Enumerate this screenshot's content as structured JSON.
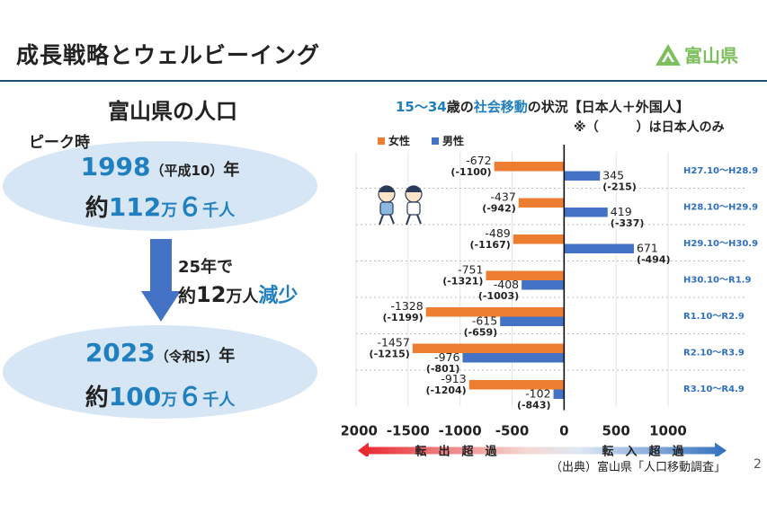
{
  "header": {
    "title": "成長戦略とウェルビーイング",
    "logo_text": "富山県"
  },
  "population": {
    "heading": "富山県の人口",
    "peak_label": "ピーク時",
    "peak_year": "1998",
    "peak_era": "（平成10）",
    "year_suffix": "年",
    "peak_yaku": "約",
    "peak_value": "112",
    "peak_man": "万",
    "peak_six": "６",
    "peak_sennin": "千人",
    "decline_years": "25年で",
    "decline_yaku": "約",
    "decline_value": "12",
    "decline_man": "万人",
    "decline_word": "減少",
    "now_year": "2023",
    "now_era": "（令和5）",
    "now_yaku": "約",
    "now_value": "100",
    "now_man": "万",
    "now_six": "６",
    "now_sennin": "千人"
  },
  "chart_data": {
    "type": "bar",
    "orientation": "horizontal",
    "title_parts": [
      {
        "text": "15～34",
        "color": "#1f7fbf"
      },
      {
        "text": "歳の",
        "color": "#222222"
      },
      {
        "text": "社会移動",
        "color": "#1f7fbf"
      },
      {
        "text": "の状況【日本人＋外国人】",
        "color": "#222222"
      }
    ],
    "note": "※（　　　）は日本人のみ",
    "categories": [
      "H27.10～H28.9",
      "H28.10～H29.9",
      "H29.10～H30.9",
      "H30.10～R1.9",
      "R1.10～R2.9",
      "R2.10～R3.9",
      "R3.10～R4.9"
    ],
    "series": [
      {
        "name": "女性",
        "color": "#ed7d31",
        "values": [
          -672,
          -437,
          -489,
          -751,
          -1328,
          -1457,
          -913
        ],
        "japanese_only": [
          -1100,
          -942,
          -1167,
          -1321,
          -1199,
          -1215,
          -1204
        ],
        "labels": [
          "-672",
          "-437",
          "-489",
          "-751",
          "-1328",
          "-1457",
          "-913"
        ],
        "sub_labels": [
          "(-1100)",
          "(-942)",
          "(-1167)",
          "(-1321)",
          "(-1199)",
          "(-1215)",
          "(-1204)"
        ]
      },
      {
        "name": "男性",
        "color": "#4472c4",
        "values": [
          345,
          419,
          671,
          -408,
          -615,
          -976,
          -102
        ],
        "japanese_only": [
          -215,
          -337,
          -494,
          -1003,
          -659,
          -801,
          -843
        ],
        "labels": [
          "345",
          "419",
          "671",
          "-408",
          "-615",
          "-976",
          "-102"
        ],
        "sub_labels": [
          "(-215)",
          "(-337)",
          "(-494)",
          "(-1003)",
          "(-659)",
          "(-801)",
          "(-843)"
        ]
      }
    ],
    "xlim": [
      -2000,
      1000
    ],
    "ticks": [
      -2000,
      -1500,
      -1000,
      -500,
      0,
      500,
      1000
    ],
    "tick_labels": [
      "-2000",
      "-1500",
      "-1000",
      "-500",
      "0",
      "500",
      "1000"
    ],
    "out_label": "転　出　超　過",
    "in_label": "転　入　超　過",
    "legend_placement": "top-left",
    "grid": true
  },
  "footer": {
    "source": "（出典）富山県「人口移動調査」",
    "page_number": "2"
  }
}
